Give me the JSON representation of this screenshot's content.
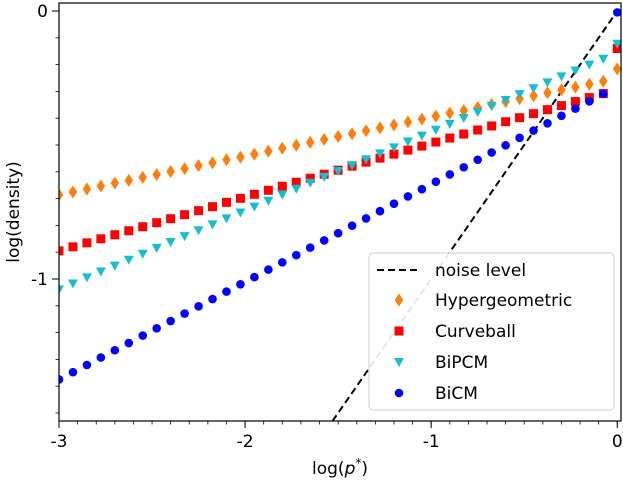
{
  "chart_data": {
    "type": "scatter",
    "xlabel_base": "log(",
    "xlabel_var": "p",
    "xlabel_sup": "*",
    "xlabel_end": ")",
    "ylabel": "log(density)",
    "xlim": [
      -3.0,
      0.02
    ],
    "ylim": [
      -1.53,
      0.03
    ],
    "x_ticks": [
      -3,
      -2,
      -1,
      0
    ],
    "x_tick_labels": [
      "-3",
      "-2",
      "-1",
      "0"
    ],
    "y_ticks": [
      -1,
      0
    ],
    "y_tick_labels": [
      "-1",
      "0"
    ],
    "x_minor_step": 0.1,
    "y_minor_step": 0.1,
    "legend_position": "lower-right",
    "noise_line": {
      "name": "noise level",
      "color": "#000000",
      "points": [
        [
          -1.53,
          -1.53
        ],
        [
          0.0,
          0.0
        ]
      ]
    },
    "series": [
      {
        "name": "Hypergeometric",
        "marker": "diamond",
        "color": "#ff7f0e",
        "x_start": -3.0,
        "x_step": 0.075,
        "values": [
          -0.686,
          -0.675,
          -0.664,
          -0.653,
          -0.642,
          -0.632,
          -0.621,
          -0.61,
          -0.599,
          -0.588,
          -0.577,
          -0.566,
          -0.555,
          -0.545,
          -0.534,
          -0.523,
          -0.512,
          -0.501,
          -0.49,
          -0.479,
          -0.468,
          -0.458,
          -0.447,
          -0.436,
          -0.425,
          -0.414,
          -0.403,
          -0.392,
          -0.381,
          -0.371,
          -0.36,
          -0.349,
          -0.338,
          -0.327,
          -0.316,
          -0.305,
          -0.294,
          -0.284,
          -0.273,
          -0.262,
          -0.216
        ]
      },
      {
        "name": "Curveball",
        "marker": "square",
        "color": "#ff0000",
        "x_start": -3.0,
        "x_step": 0.075,
        "values": [
          -0.895,
          -0.88,
          -0.865,
          -0.85,
          -0.835,
          -0.82,
          -0.805,
          -0.79,
          -0.775,
          -0.76,
          -0.745,
          -0.73,
          -0.714,
          -0.699,
          -0.684,
          -0.669,
          -0.654,
          -0.639,
          -0.624,
          -0.609,
          -0.594,
          -0.579,
          -0.564,
          -0.549,
          -0.534,
          -0.519,
          -0.504,
          -0.489,
          -0.474,
          -0.459,
          -0.444,
          -0.429,
          -0.413,
          -0.398,
          -0.383,
          -0.368,
          -0.353,
          -0.338,
          -0.323,
          -0.308,
          -0.14
        ]
      },
      {
        "name": "BiPCM",
        "marker": "triangle-down",
        "color": "#17becf",
        "x_start": -3.0,
        "x_step": 0.075,
        "values": [
          -1.039,
          -1.017,
          -0.994,
          -0.972,
          -0.95,
          -0.928,
          -0.906,
          -0.884,
          -0.862,
          -0.84,
          -0.818,
          -0.796,
          -0.774,
          -0.752,
          -0.73,
          -0.708,
          -0.685,
          -0.663,
          -0.641,
          -0.619,
          -0.597,
          -0.575,
          -0.553,
          -0.531,
          -0.509,
          -0.487,
          -0.465,
          -0.443,
          -0.421,
          -0.399,
          -0.377,
          -0.354,
          -0.332,
          -0.31,
          -0.288,
          -0.266,
          -0.244,
          -0.222,
          -0.2,
          -0.178,
          -0.122
        ]
      },
      {
        "name": "BiCM",
        "marker": "circle",
        "color": "#0000ff",
        "x_start": -3.0,
        "x_step": 0.075,
        "values": [
          -1.375,
          -1.348,
          -1.321,
          -1.293,
          -1.266,
          -1.239,
          -1.211,
          -1.184,
          -1.157,
          -1.129,
          -1.102,
          -1.075,
          -1.047,
          -1.02,
          -0.993,
          -0.965,
          -0.938,
          -0.911,
          -0.883,
          -0.856,
          -0.829,
          -0.801,
          -0.774,
          -0.747,
          -0.719,
          -0.692,
          -0.665,
          -0.637,
          -0.61,
          -0.583,
          -0.555,
          -0.528,
          -0.501,
          -0.473,
          -0.446,
          -0.419,
          -0.391,
          -0.364,
          -0.337,
          -0.309,
          -0.005
        ]
      }
    ]
  }
}
